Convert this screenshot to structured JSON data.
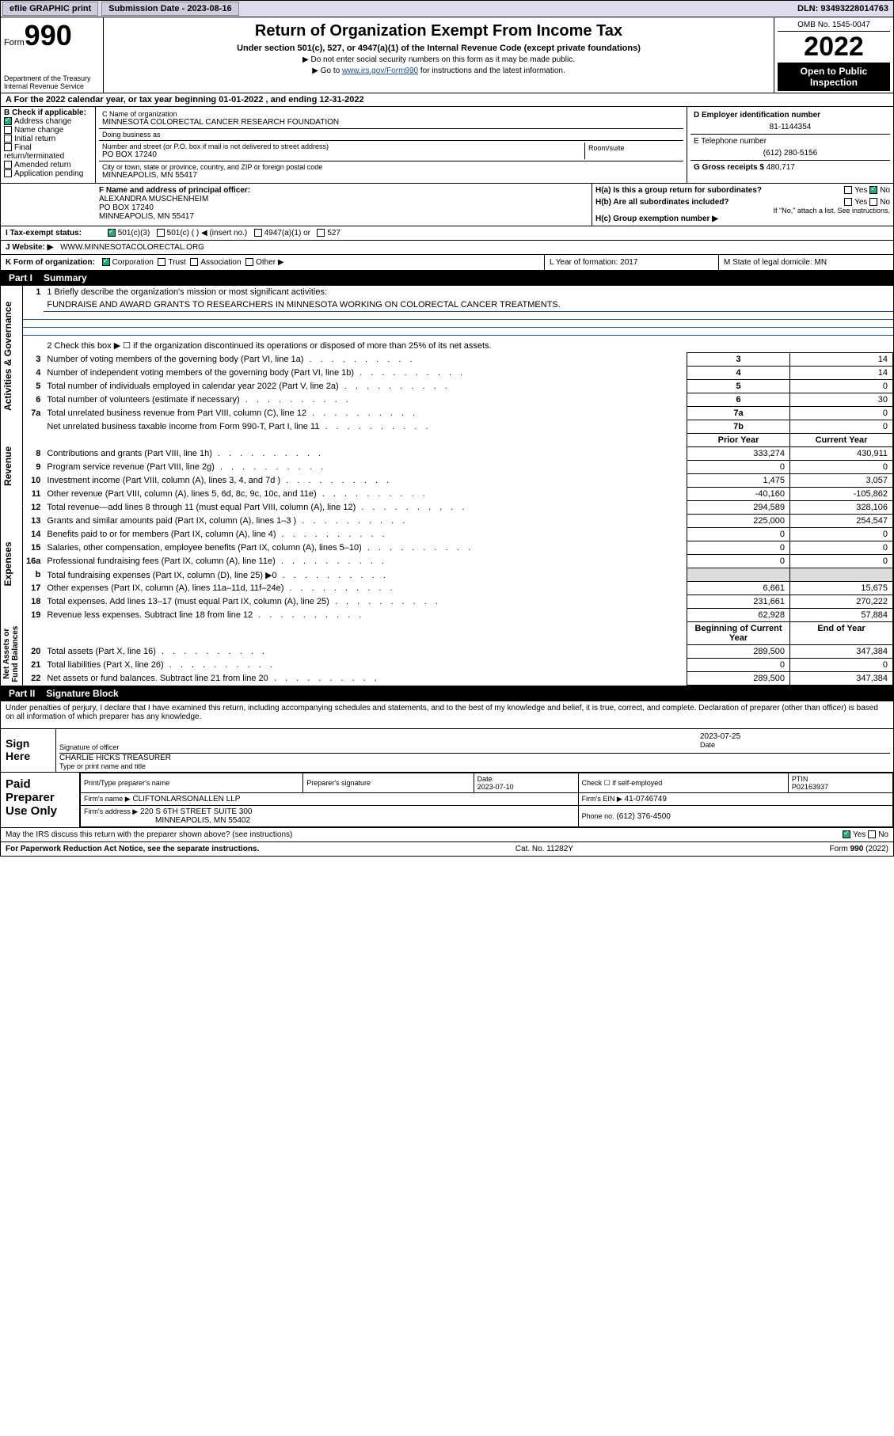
{
  "topbar": {
    "efile": "efile GRAPHIC print",
    "submission_label": "Submission Date - ",
    "submission_date": "2023-08-16",
    "dln_label": "DLN: ",
    "dln": "93493228014763"
  },
  "header": {
    "form_word": "Form",
    "form_num": "990",
    "dept": "Department of the Treasury",
    "irs": "Internal Revenue Service",
    "title": "Return of Organization Exempt From Income Tax",
    "subtitle": "Under section 501(c), 527, or 4947(a)(1) of the Internal Revenue Code (except private foundations)",
    "note1": "▶ Do not enter social security numbers on this form as it may be made public.",
    "note2_pre": "▶ Go to ",
    "note2_link": "www.irs.gov/Form990",
    "note2_post": " for instructions and the latest information.",
    "omb": "OMB No. 1545-0047",
    "year": "2022",
    "open": "Open to Public Inspection"
  },
  "row_a": "A For the 2022 calendar year, or tax year beginning 01-01-2022  , and ending 12-31-2022",
  "box_b": {
    "label": "B Check if applicable:",
    "items": [
      {
        "checked": true,
        "label": "Address change"
      },
      {
        "checked": false,
        "label": "Name change"
      },
      {
        "checked": false,
        "label": "Initial return"
      },
      {
        "checked": false,
        "label": "Final return/terminated"
      },
      {
        "checked": false,
        "label": "Amended return"
      },
      {
        "checked": false,
        "label": "Application pending"
      }
    ]
  },
  "box_c": {
    "name_label": "C Name of organization",
    "name": "MINNESOTA COLORECTAL CANCER RESEARCH FOUNDATION",
    "dba_label": "Doing business as",
    "dba": "",
    "street_label": "Number and street (or P.O. box if mail is not delivered to street address)",
    "room_label": "Room/suite",
    "street": "PO BOX 17240",
    "city_label": "City or town, state or province, country, and ZIP or foreign postal code",
    "city": "MINNEAPOLIS, MN  55417"
  },
  "box_d": {
    "label": "D Employer identification number",
    "value": "81-1144354"
  },
  "box_e": {
    "label": "E Telephone number",
    "value": "(612) 280-5156"
  },
  "box_g": {
    "label": "G Gross receipts $",
    "value": "480,717"
  },
  "box_f": {
    "label": "F Name and address of principal officer:",
    "name": "ALEXANDRA MUSCHENHEIM",
    "addr1": "PO BOX 17240",
    "addr2": "MINNEAPOLIS, MN  55417"
  },
  "box_h": {
    "ha": "H(a)  Is this a group return for subordinates?",
    "ha_yes": "Yes",
    "ha_no": "No",
    "ha_checked": "no",
    "hb": "H(b)  Are all subordinates included?",
    "hb_yes": "Yes",
    "hb_no": "No",
    "hb_note": "If \"No,\" attach a list. See instructions.",
    "hc": "H(c)  Group exemption number ▶",
    "hc_val": ""
  },
  "row_i": {
    "label": "I   Tax-exempt status:",
    "opts": [
      "501(c)(3)",
      "501(c) (  ) ◀ (insert no.)",
      "4947(a)(1) or",
      "527"
    ],
    "checked_index": 0
  },
  "row_j": {
    "label": "J   Website: ▶",
    "value": "WWW.MINNESOTACOLORECTAL.ORG"
  },
  "row_k": {
    "label": "K Form of organization:",
    "opts": [
      "Corporation",
      "Trust",
      "Association",
      "Other ▶"
    ],
    "checked_index": 0,
    "l": "L Year of formation: 2017",
    "m": "M State of legal domicile: MN"
  },
  "part1": {
    "label": "Part I",
    "title": "Summary"
  },
  "summary": {
    "sections": [
      "Activities & Governance",
      "Revenue",
      "Expenses",
      "Net Assets or Fund Balances"
    ],
    "line1_label": "1   Briefly describe the organization's mission or most significant activities:",
    "mission": "FUNDRAISE AND AWARD GRANTS TO RESEARCHERS IN MINNESOTA WORKING ON COLORECTAL CANCER TREATMENTS.",
    "line2": "2   Check this box ▶ ☐  if the organization discontinued its operations or disposed of more than 25% of its net assets.",
    "gov_rows": [
      {
        "n": "3",
        "desc": "Number of voting members of the governing body (Part VI, line 1a)",
        "box": "3",
        "val": "14"
      },
      {
        "n": "4",
        "desc": "Number of independent voting members of the governing body (Part VI, line 1b)",
        "box": "4",
        "val": "14"
      },
      {
        "n": "5",
        "desc": "Total number of individuals employed in calendar year 2022 (Part V, line 2a)",
        "box": "5",
        "val": "0"
      },
      {
        "n": "6",
        "desc": "Total number of volunteers (estimate if necessary)",
        "box": "6",
        "val": "30"
      },
      {
        "n": "7a",
        "desc": "Total unrelated business revenue from Part VIII, column (C), line 12",
        "box": "7a",
        "val": "0"
      },
      {
        "n": "",
        "desc": "Net unrelated business taxable income from Form 990-T, Part I, line 11",
        "box": "7b",
        "val": "0"
      }
    ],
    "col_headers": {
      "prior": "Prior Year",
      "current": "Current Year"
    },
    "rev_rows": [
      {
        "n": "8",
        "desc": "Contributions and grants (Part VIII, line 1h)",
        "p": "333,274",
        "c": "430,911"
      },
      {
        "n": "9",
        "desc": "Program service revenue (Part VIII, line 2g)",
        "p": "0",
        "c": "0"
      },
      {
        "n": "10",
        "desc": "Investment income (Part VIII, column (A), lines 3, 4, and 7d )",
        "p": "1,475",
        "c": "3,057"
      },
      {
        "n": "11",
        "desc": "Other revenue (Part VIII, column (A), lines 5, 6d, 8c, 9c, 10c, and 11e)",
        "p": "-40,160",
        "c": "-105,862"
      },
      {
        "n": "12",
        "desc": "Total revenue—add lines 8 through 11 (must equal Part VIII, column (A), line 12)",
        "p": "294,589",
        "c": "328,106"
      }
    ],
    "exp_rows": [
      {
        "n": "13",
        "desc": "Grants and similar amounts paid (Part IX, column (A), lines 1–3 )",
        "p": "225,000",
        "c": "254,547"
      },
      {
        "n": "14",
        "desc": "Benefits paid to or for members (Part IX, column (A), line 4)",
        "p": "0",
        "c": "0"
      },
      {
        "n": "15",
        "desc": "Salaries, other compensation, employee benefits (Part IX, column (A), lines 5–10)",
        "p": "0",
        "c": "0"
      },
      {
        "n": "16a",
        "desc": "Professional fundraising fees (Part IX, column (A), line 11e)",
        "p": "0",
        "c": "0"
      },
      {
        "n": "b",
        "desc": "Total fundraising expenses (Part IX, column (D), line 25) ▶0",
        "p": "",
        "c": "",
        "grey": true
      },
      {
        "n": "17",
        "desc": "Other expenses (Part IX, column (A), lines 11a–11d, 11f–24e)",
        "p": "6,661",
        "c": "15,675"
      },
      {
        "n": "18",
        "desc": "Total expenses. Add lines 13–17 (must equal Part IX, column (A), line 25)",
        "p": "231,661",
        "c": "270,222"
      },
      {
        "n": "19",
        "desc": "Revenue less expenses. Subtract line 18 from line 12",
        "p": "62,928",
        "c": "57,884"
      }
    ],
    "na_headers": {
      "beg": "Beginning of Current Year",
      "end": "End of Year"
    },
    "na_rows": [
      {
        "n": "20",
        "desc": "Total assets (Part X, line 16)",
        "p": "289,500",
        "c": "347,384"
      },
      {
        "n": "21",
        "desc": "Total liabilities (Part X, line 26)",
        "p": "0",
        "c": "0"
      },
      {
        "n": "22",
        "desc": "Net assets or fund balances. Subtract line 21 from line 20",
        "p": "289,500",
        "c": "347,384"
      }
    ]
  },
  "part2": {
    "label": "Part II",
    "title": "Signature Block"
  },
  "sig": {
    "decl": "Under penalties of perjury, I declare that I have examined this return, including accompanying schedules and statements, and to the best of my knowledge and belief, it is true, correct, and complete. Declaration of preparer (other than officer) is based on all information of which preparer has any knowledge.",
    "sign_here": "Sign Here",
    "sig_officer": "Signature of officer",
    "date_label": "Date",
    "date": "2023-07-25",
    "name_title": "CHARLIE HICKS TREASURER",
    "name_title_label": "Type or print name and title"
  },
  "paid": {
    "label": "Paid Preparer Use Only",
    "h": [
      "Print/Type preparer's name",
      "Preparer's signature",
      "Date",
      "Check ☐ if self-employed",
      "PTIN"
    ],
    "r1": [
      "",
      "",
      "2023-07-10",
      "",
      "P02163937"
    ],
    "firm_name_label": "Firm's name    ▶",
    "firm_name": "CLIFTONLARSONALLEN LLP",
    "firm_ein_label": "Firm's EIN ▶",
    "firm_ein": "41-0746749",
    "firm_addr_label": "Firm's address ▶",
    "firm_addr1": "220 S 6TH STREET SUITE 300",
    "firm_addr2": "MINNEAPOLIS, MN  55402",
    "phone_label": "Phone no.",
    "phone": "(612) 376-4500"
  },
  "may": {
    "q": "May the IRS discuss this return with the preparer shown above? (see instructions)",
    "yes": "Yes",
    "no": "No",
    "checked": "yes"
  },
  "footer": {
    "left": "For Paperwork Reduction Act Notice, see the separate instructions.",
    "mid": "Cat. No. 11282Y",
    "right": "Form 990 (2022)"
  },
  "colors": {
    "link": "#1a4b8c",
    "check": "#2a7"
  }
}
